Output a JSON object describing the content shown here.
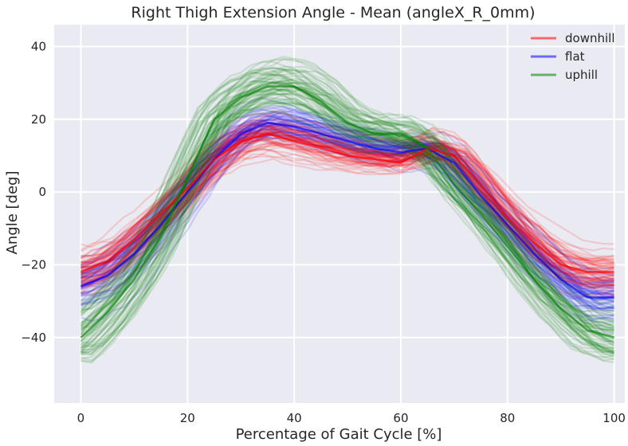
{
  "chart_data": {
    "type": "line",
    "title": "Right Thigh Extension Angle - Mean (angleX_R_0mm)",
    "xlabel": "Percentage of Gait Cycle [%]",
    "ylabel": "Angle [deg]",
    "xlim": [
      -5,
      102
    ],
    "ylim": [
      -58,
      46
    ],
    "xticks": [
      0,
      20,
      40,
      60,
      80,
      100
    ],
    "yticks": [
      -40,
      -20,
      0,
      20,
      40
    ],
    "grid": true,
    "legend_position": "top-right",
    "x": [
      0,
      5,
      10,
      15,
      20,
      25,
      30,
      35,
      40,
      45,
      50,
      55,
      60,
      65,
      70,
      75,
      80,
      85,
      90,
      95,
      100
    ],
    "series": [
      {
        "name": "downhill",
        "color": "#ff0000",
        "values": [
          -22,
          -19,
          -13,
          -6,
          1,
          9,
          14,
          16,
          14,
          12,
          10,
          9,
          8,
          12,
          10,
          2,
          -7,
          -14,
          -20,
          -22,
          -22
        ],
        "individual_traces": 60
      },
      {
        "name": "flat",
        "color": "#0000ff",
        "values": [
          -26,
          -23,
          -17,
          -9,
          0,
          9,
          16,
          19,
          18,
          16,
          14,
          12,
          11,
          12,
          8,
          -1,
          -9,
          -17,
          -24,
          -29,
          -29
        ],
        "individual_traces": 60
      },
      {
        "name": "uphill",
        "color": "#008000",
        "values": [
          -40,
          -33,
          -24,
          -12,
          4,
          20,
          26,
          29,
          29,
          25,
          19,
          16,
          16,
          12,
          2,
          -6,
          -15,
          -24,
          -32,
          -38,
          -40
        ],
        "individual_traces": 60
      }
    ]
  }
}
